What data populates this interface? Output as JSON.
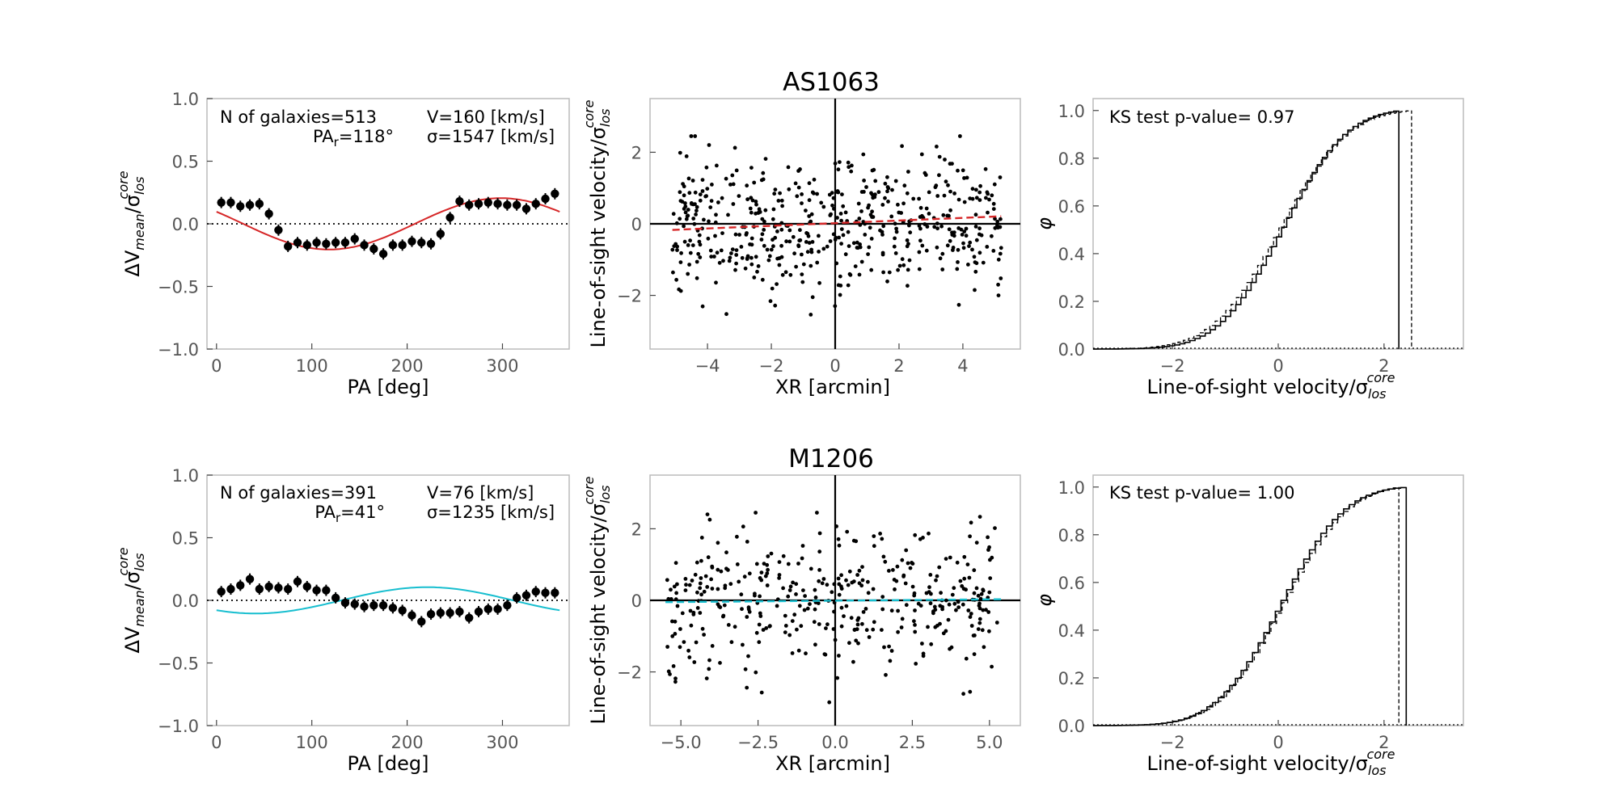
{
  "chart_data": [
    {
      "type": "scatter",
      "panel": "pa-profile-top",
      "xlabel": "PA [deg]",
      "ylabel_main": "ΔV",
      "ylabel_sub": "mean",
      "ylabel_mid": "/σ",
      "ylabel_sub2": "los",
      "ylabel_sup": "core",
      "xlim": [
        -10,
        370
      ],
      "ylim": [
        -1.0,
        1.0
      ],
      "xticks": [
        0,
        100,
        200,
        300
      ],
      "yticks": [
        "−1.0",
        "−0.5",
        "0.0",
        "0.5",
        "1.0"
      ],
      "ytick_values": [
        -1.0,
        -0.5,
        0.0,
        0.5,
        1.0
      ],
      "fit_color": "#d62728",
      "fit": {
        "amplitude": 0.205,
        "pa_deg": 118
      },
      "annotations": {
        "ngal": "N of galaxies=513",
        "v": "V=160 [km/s]",
        "pa_r": "PA",
        "pa_r_sub": "r",
        "pa_r_val": "=118°",
        "sigma": "σ=1547 [km/s]"
      },
      "x": [
        5,
        15,
        25,
        35,
        45,
        55,
        65,
        75,
        85,
        95,
        105,
        115,
        125,
        135,
        145,
        155,
        165,
        175,
        185,
        195,
        205,
        215,
        225,
        235,
        245,
        255,
        265,
        275,
        285,
        295,
        305,
        315,
        325,
        335,
        345,
        355
      ],
      "y": [
        0.17,
        0.17,
        0.14,
        0.15,
        0.16,
        0.08,
        -0.05,
        -0.18,
        -0.15,
        -0.17,
        -0.15,
        -0.16,
        -0.15,
        -0.15,
        -0.12,
        -0.17,
        -0.2,
        -0.24,
        -0.17,
        -0.17,
        -0.14,
        -0.15,
        -0.16,
        -0.08,
        0.05,
        0.18,
        0.15,
        0.16,
        0.17,
        0.16,
        0.15,
        0.15,
        0.12,
        0.16,
        0.2,
        0.24
      ],
      "yerr": 0.045
    },
    {
      "type": "scatter",
      "panel": "velocity-scatter-top",
      "title": "AS1063",
      "xlabel": "XR [arcmin]",
      "ylabel": "Line-of-sight velocity/σ",
      "ylabel_sub": "los",
      "ylabel_sup": "core",
      "xlim": [
        -5.8,
        5.8
      ],
      "ylim": [
        -3.5,
        3.5
      ],
      "xticks": [
        -4,
        -2,
        0,
        2,
        4
      ],
      "xtick_labels": [
        "−4",
        "−2",
        "0",
        "2",
        "4"
      ],
      "yticks": [
        -2,
        0,
        2
      ],
      "ytick_labels": [
        "−2",
        "0",
        "2"
      ],
      "fit_color": "#d62728",
      "fit_line": [
        [
          -5.1,
          -0.17
        ],
        [
          5.2,
          0.21
        ]
      ],
      "n_points": 513,
      "seed": 11,
      "x_range": [
        -5.1,
        5.2
      ]
    },
    {
      "type": "line",
      "panel": "cdf-top",
      "xlabel": "Line-of-sight velocity/σ",
      "xlabel_sub": "los",
      "xlabel_sup": "core",
      "ylabel": "φ",
      "xlim": [
        -3.5,
        3.5
      ],
      "ylim": [
        0,
        1.05
      ],
      "xticks": [
        -2,
        0,
        2
      ],
      "xtick_labels": [
        "−2",
        "0",
        "2"
      ],
      "yticks": [
        0.0,
        0.2,
        0.4,
        0.6,
        0.8,
        1.0
      ],
      "ytick_labels": [
        "0.0",
        "0.2",
        "0.4",
        "0.6",
        "0.8",
        "1.0"
      ],
      "ks_label": "KS test p-value= 0.97",
      "series": [
        {
          "name": "solid",
          "mu": 0.05,
          "sigma": 0.95,
          "max": 2.28,
          "steps": 60
        },
        {
          "name": "dashed",
          "mu": 0.0,
          "sigma": 1.0,
          "max": 2.52,
          "steps": 60
        }
      ]
    },
    {
      "type": "scatter",
      "panel": "pa-profile-bottom",
      "xlabel": "PA [deg]",
      "ylabel_main": "ΔV",
      "ylabel_sub": "mean",
      "ylabel_mid": "/σ",
      "ylabel_sub2": "los",
      "ylabel_sup": "core",
      "xlim": [
        -10,
        370
      ],
      "ylim": [
        -1.0,
        1.0
      ],
      "xticks": [
        0,
        100,
        200,
        300
      ],
      "yticks": [
        "−1.0",
        "−0.5",
        "0.0",
        "0.5",
        "1.0"
      ],
      "ytick_values": [
        -1.0,
        -0.5,
        0.0,
        0.5,
        1.0
      ],
      "fit_color": "#17becf",
      "fit": {
        "amplitude": 0.105,
        "pa_deg": 41
      },
      "annotations": {
        "ngal": "N of galaxies=391",
        "v": "V=76 [km/s]",
        "pa_r": "PA",
        "pa_r_sub": "r",
        "pa_r_val": "=41°",
        "sigma": "σ=1235 [km/s]"
      },
      "x": [
        5,
        15,
        25,
        35,
        45,
        55,
        65,
        75,
        85,
        95,
        105,
        115,
        125,
        135,
        145,
        155,
        165,
        175,
        185,
        195,
        205,
        215,
        225,
        235,
        245,
        255,
        265,
        275,
        285,
        295,
        305,
        315,
        325,
        335,
        345,
        355
      ],
      "y": [
        0.07,
        0.09,
        0.12,
        0.17,
        0.09,
        0.11,
        0.1,
        0.09,
        0.15,
        0.11,
        0.08,
        0.08,
        0.02,
        -0.02,
        -0.03,
        -0.05,
        -0.04,
        -0.04,
        -0.06,
        -0.08,
        -0.12,
        -0.17,
        -0.11,
        -0.1,
        -0.1,
        -0.09,
        -0.14,
        -0.09,
        -0.07,
        -0.07,
        -0.04,
        0.02,
        0.04,
        0.07,
        0.06,
        0.06
      ],
      "yerr": 0.045
    },
    {
      "type": "scatter",
      "panel": "velocity-scatter-bottom",
      "title": "M1206",
      "xlabel": "XR [arcmin]",
      "ylabel": "Line-of-sight velocity/σ",
      "ylabel_sub": "los",
      "ylabel_sup": "core",
      "xlim": [
        -6.0,
        6.0
      ],
      "ylim": [
        -3.5,
        3.5
      ],
      "xticks": [
        -5.0,
        -2.5,
        0.0,
        2.5,
        5.0
      ],
      "xtick_labels": [
        "−5.0",
        "−2.5",
        "0.0",
        "2.5",
        "5.0"
      ],
      "yticks": [
        -2,
        0,
        2
      ],
      "ytick_labels": [
        "−2",
        "0",
        "2"
      ],
      "fit_color": "#17becf",
      "fit_line": [
        [
          -5.5,
          -0.05
        ],
        [
          5.4,
          0.03
        ]
      ],
      "n_points": 391,
      "seed": 29,
      "x_range": [
        -5.5,
        5.4
      ]
    },
    {
      "type": "line",
      "panel": "cdf-bottom",
      "xlabel": "Line-of-sight velocity/σ",
      "xlabel_sub": "los",
      "xlabel_sup": "core",
      "ylabel": "φ",
      "xlim": [
        -3.5,
        3.5
      ],
      "ylim": [
        0,
        1.05
      ],
      "xticks": [
        -2,
        0,
        2
      ],
      "xtick_labels": [
        "−2",
        "0",
        "2"
      ],
      "yticks": [
        0.0,
        0.2,
        0.4,
        0.6,
        0.8,
        1.0
      ],
      "ytick_labels": [
        "0.0",
        "0.2",
        "0.4",
        "0.6",
        "0.8",
        "1.0"
      ],
      "ks_label": "KS test p-value= 1.00",
      "series": [
        {
          "name": "solid",
          "mu": 0.0,
          "sigma": 0.95,
          "max": 2.42,
          "steps": 55
        },
        {
          "name": "dashed",
          "mu": 0.05,
          "sigma": 0.97,
          "max": 2.28,
          "steps": 55
        }
      ]
    }
  ]
}
